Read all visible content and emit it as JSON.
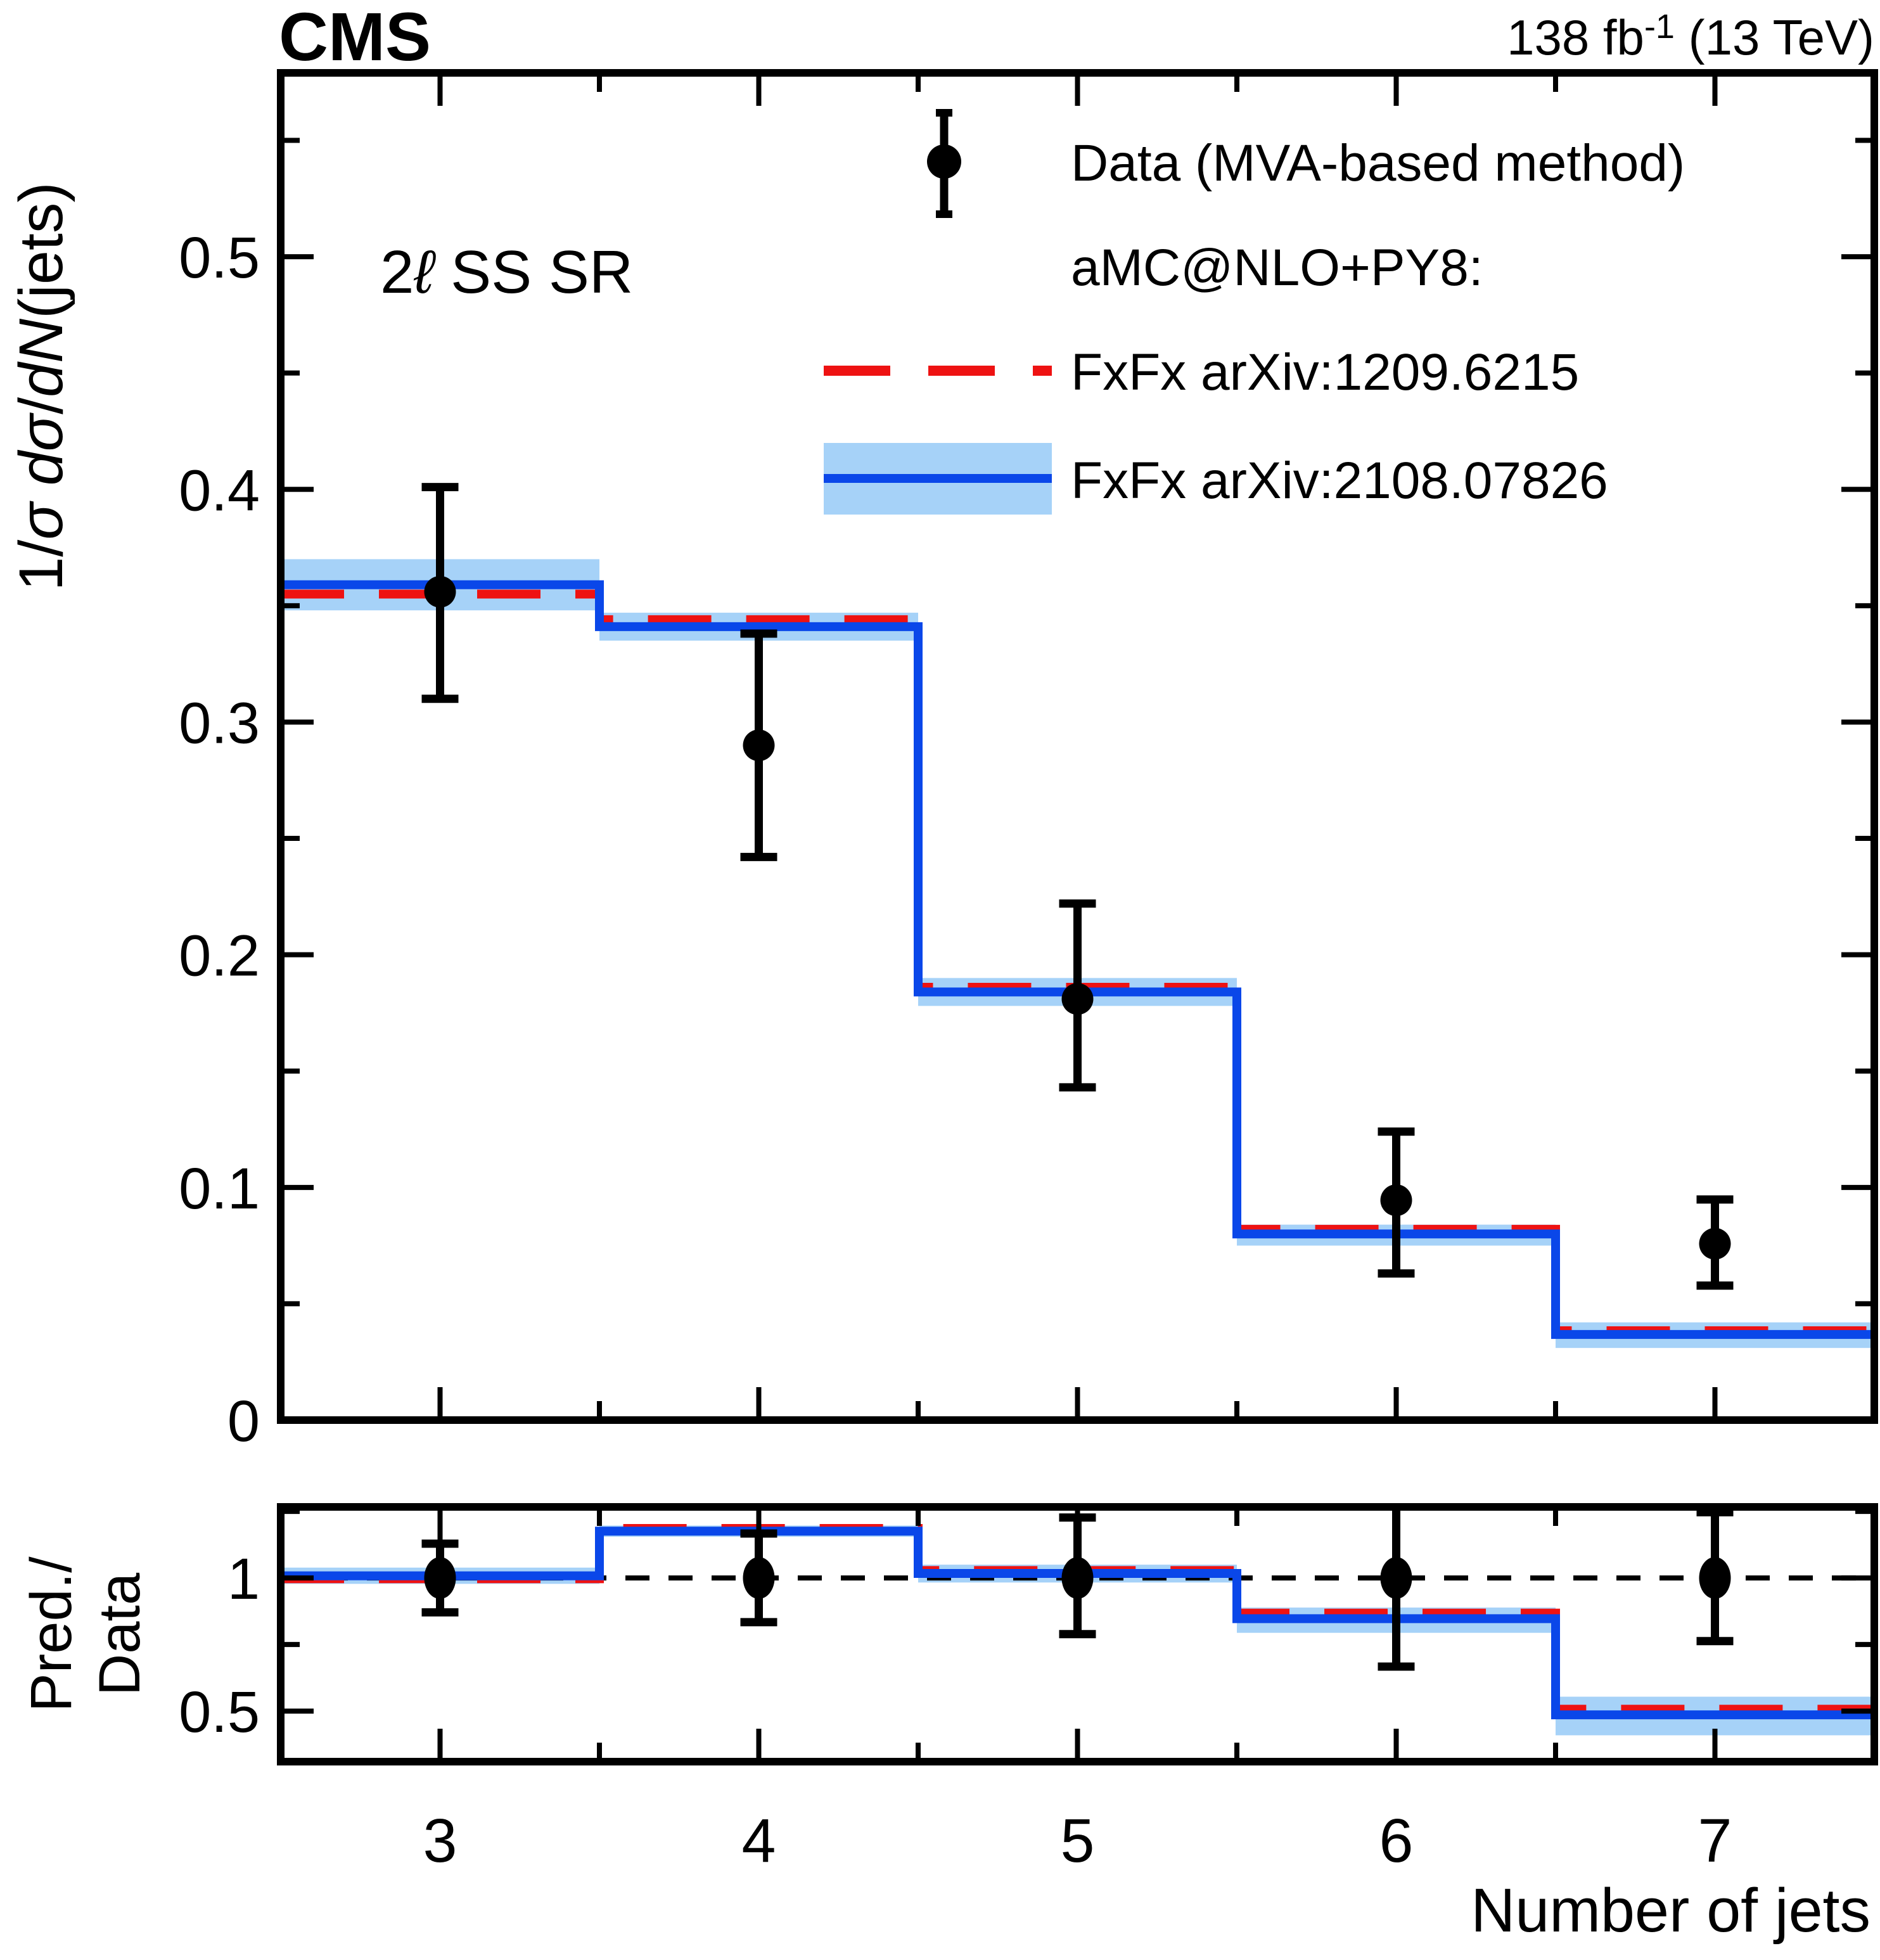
{
  "header": {
    "experiment": "CMS",
    "lumi_main": "138 fb",
    "lumi_sup": "-1",
    "lumi_tail": " (13 TeV)"
  },
  "region_label": {
    "num": "2",
    "lepton": "ℓ",
    "tail": " SS SR"
  },
  "legend": {
    "data_label": "Data (MVA-based method)",
    "group_label": "aMC@NLO+PY8:",
    "fxfx_old_label": "FxFx arXiv:1209.6215",
    "fxfx_new_label": "FxFx arXiv:2108.07826"
  },
  "axes": {
    "y_label_parts": [
      "1/",
      "σ dσ",
      "/",
      "dN",
      "(jets)"
    ],
    "ratio_label_line1": "Pred./",
    "ratio_label_line2": "Data",
    "x_label": "Number of jets",
    "y_ticks": [
      {
        "v": 0.0,
        "label": "0"
      },
      {
        "v": 0.1,
        "label": "0.1"
      },
      {
        "v": 0.2,
        "label": "0.2"
      },
      {
        "v": 0.3,
        "label": "0.3"
      },
      {
        "v": 0.4,
        "label": "0.4"
      },
      {
        "v": 0.5,
        "label": "0.5"
      }
    ],
    "y_minor": [
      0.05,
      0.15,
      0.25,
      0.35,
      0.45,
      0.55
    ],
    "x_ticks": [
      {
        "v": 3,
        "label": "3"
      },
      {
        "v": 4,
        "label": "4"
      },
      {
        "v": 5,
        "label": "5"
      },
      {
        "v": 6,
        "label": "6"
      },
      {
        "v": 7,
        "label": "7"
      }
    ],
    "x_minor": [
      3.5,
      4.5,
      5.5,
      6.5
    ],
    "ratio_ticks": [
      {
        "v": 0.5,
        "label": "0.5"
      },
      {
        "v": 1.0,
        "label": "1"
      }
    ],
    "ratio_minor": [
      0.75,
      1.25
    ]
  },
  "chart_data": {
    "type": "step-histogram-with-errorbars-and-ratio",
    "title": "CMS, 138 fb-1 (13 TeV), 2l SS SR",
    "xlabel": "Number of jets",
    "ylabel": "1/sigma dsigma/dN(jets)",
    "ratio_ylabel": "Pred./Data",
    "xlim": [
      2.5,
      7.5
    ],
    "ylim": [
      0,
      0.579
    ],
    "bin_edges": [
      2.5,
      3.5,
      4.5,
      5.5,
      6.5,
      7.5
    ],
    "bin_centers": [
      3,
      4,
      5,
      6,
      7
    ],
    "colors": {
      "red": "#ee1212",
      "blue": "#0a47e9",
      "band": "#a6d2f8",
      "black": "#000000"
    },
    "series": [
      {
        "name": "Data (MVA-based method)",
        "type": "scatter-errorbar",
        "y": [
          0.356,
          0.29,
          0.181,
          0.0945,
          0.0758
        ],
        "err_up": [
          0.045,
          0.048,
          0.041,
          0.0295,
          0.019
        ],
        "err_down": [
          0.046,
          0.048,
          0.038,
          0.0315,
          0.018
        ]
      },
      {
        "name": "FxFx arXiv:1209.6215",
        "type": "step-dashed",
        "y": [
          0.355,
          0.344,
          0.186,
          0.082,
          0.0384
        ]
      },
      {
        "name": "FxFx arXiv:2108.07826",
        "type": "step-with-band",
        "y": [
          0.359,
          0.341,
          0.184,
          0.08,
          0.0368
        ],
        "band_lo": [
          0.348,
          0.335,
          0.178,
          0.075,
          0.031
        ],
        "band_hi": [
          0.37,
          0.347,
          0.19,
          0.084,
          0.042
        ]
      }
    ],
    "ratio": {
      "ylim": [
        0.31,
        1.267
      ],
      "reference": 1.0,
      "blue": [
        1.008,
        1.176,
        1.017,
        0.847,
        0.486
      ],
      "red": [
        0.997,
        1.186,
        1.028,
        0.868,
        0.507
      ],
      "band_lo": [
        0.978,
        1.155,
        0.983,
        0.794,
        0.409
      ],
      "band_hi": [
        1.039,
        1.197,
        1.05,
        0.889,
        0.554
      ],
      "data": {
        "y": [
          1.0,
          1.0,
          1.0,
          1.0,
          1.0
        ],
        "err_up": [
          0.129,
          0.167,
          0.227,
          0.312,
          0.247
        ],
        "err_down": [
          0.129,
          0.166,
          0.211,
          0.333,
          0.237
        ]
      }
    }
  }
}
